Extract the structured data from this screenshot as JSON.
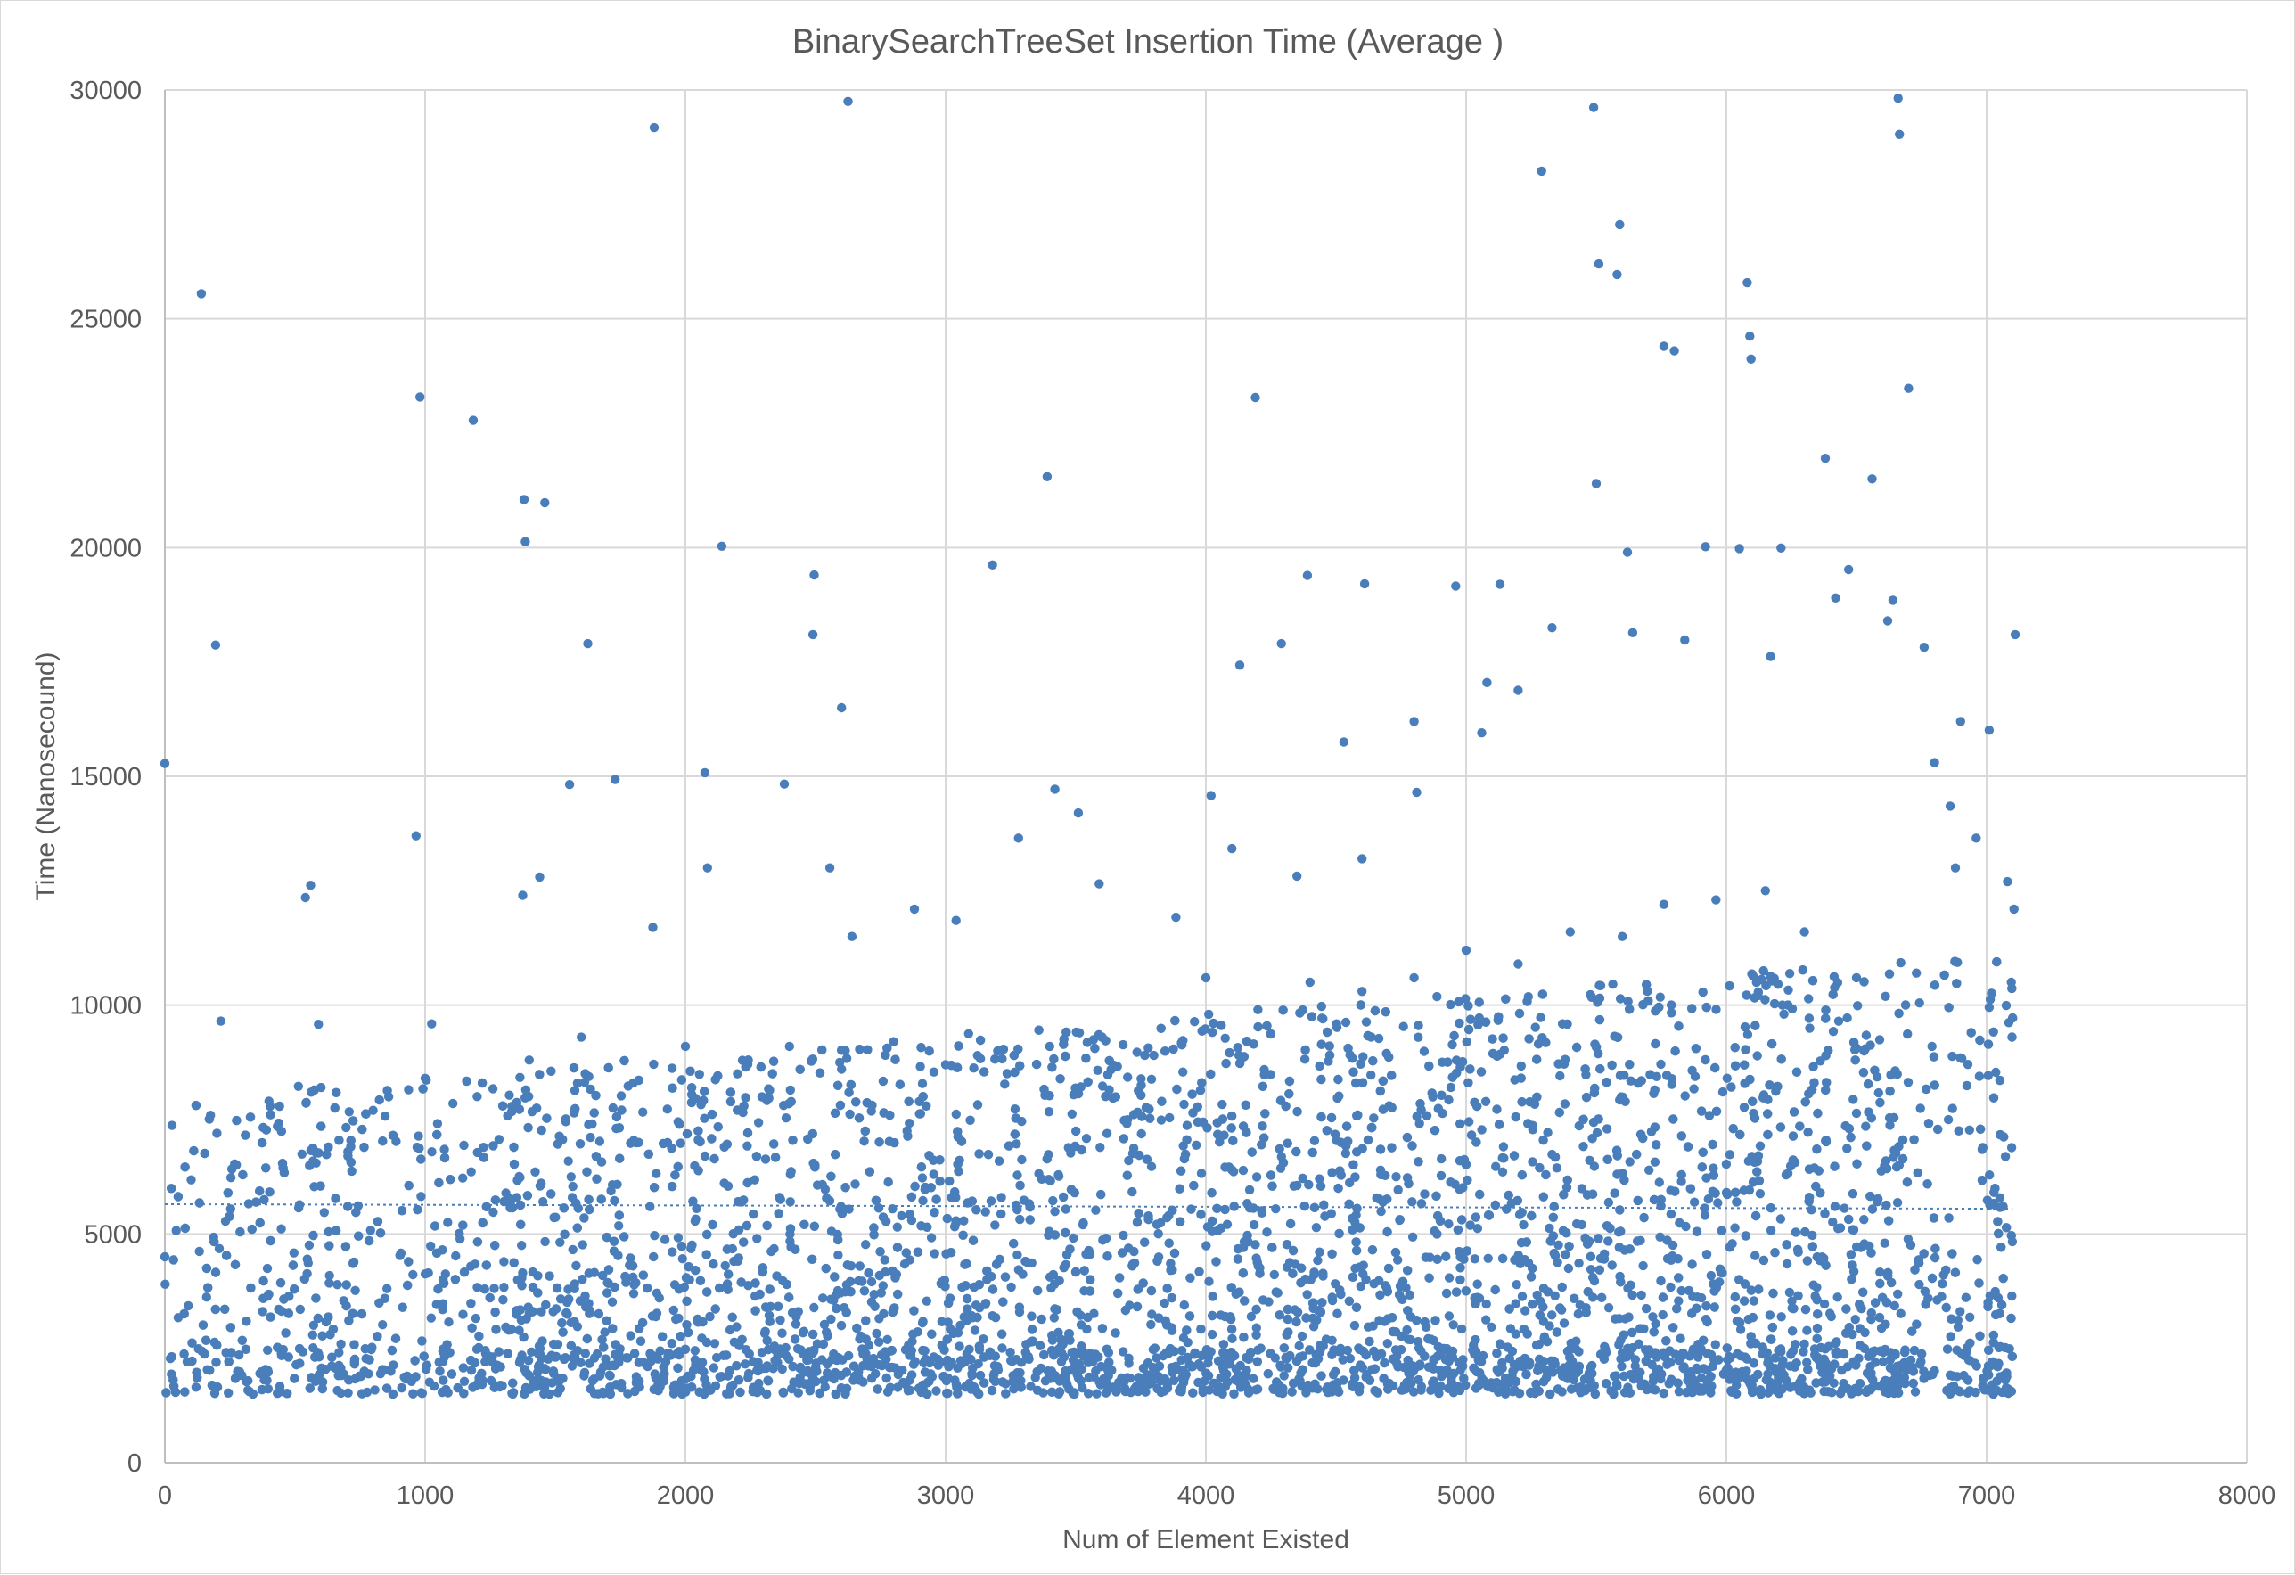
{
  "chart_data": {
    "type": "scatter",
    "title": "BinarySearchTreeSet Insertion Time (Average )",
    "xlabel": "Num of Element Existed",
    "ylabel": "Time (Nanosecound)",
    "xlim": [
      0,
      8000
    ],
    "ylim": [
      0,
      30000
    ],
    "x_ticks": [
      "0",
      "1000",
      "2000",
      "3000",
      "4000",
      "5000",
      "6000",
      "7000",
      "8000"
    ],
    "y_ticks": [
      "0",
      "5000",
      "10000",
      "15000",
      "20000",
      "25000",
      "30000"
    ],
    "grid": true,
    "legend": "none",
    "colors": {
      "marker": "#4a7ebb",
      "trendline": "#4a7ebb"
    },
    "trendline": {
      "type": "linear",
      "style": "dotted",
      "x": [
        0,
        7100
      ],
      "y": [
        5650,
        5550
      ]
    },
    "series": [
      {
        "points_note_free": true,
        "points": [
          [
            0,
            15280
          ],
          [
            140,
            25550
          ],
          [
            195,
            17870
          ],
          [
            215,
            9650
          ],
          [
            540,
            12350
          ],
          [
            560,
            12620
          ],
          [
            590,
            9580
          ],
          [
            965,
            13700
          ],
          [
            980,
            23290
          ],
          [
            1025,
            9590
          ],
          [
            1185,
            22780
          ],
          [
            1380,
            21050
          ],
          [
            1385,
            20130
          ],
          [
            1375,
            12400
          ],
          [
            1440,
            12800
          ],
          [
            1460,
            20980
          ],
          [
            1555,
            14820
          ],
          [
            1625,
            17900
          ],
          [
            1730,
            14930
          ],
          [
            1880,
            29180
          ],
          [
            1875,
            11700
          ],
          [
            2075,
            15080
          ],
          [
            2085,
            13000
          ],
          [
            2140,
            20030
          ],
          [
            2380,
            14830
          ],
          [
            2490,
            18100
          ],
          [
            2495,
            19400
          ],
          [
            2555,
            13000
          ],
          [
            2600,
            16500
          ],
          [
            2625,
            29750
          ],
          [
            2640,
            11500
          ],
          [
            2880,
            12100
          ],
          [
            3040,
            11850
          ],
          [
            3180,
            19620
          ],
          [
            3280,
            13650
          ],
          [
            3390,
            21550
          ],
          [
            3420,
            14720
          ],
          [
            3510,
            14200
          ],
          [
            3590,
            12650
          ],
          [
            3885,
            11920
          ],
          [
            4020,
            14580
          ],
          [
            4100,
            13420
          ],
          [
            4130,
            17430
          ],
          [
            4190,
            23280
          ],
          [
            4290,
            17900
          ],
          [
            4350,
            12820
          ],
          [
            4390,
            19390
          ],
          [
            4530,
            15750
          ],
          [
            4600,
            13200
          ],
          [
            4610,
            19210
          ],
          [
            4800,
            16200
          ],
          [
            4810,
            14650
          ],
          [
            4960,
            19160
          ],
          [
            5060,
            15950
          ],
          [
            5080,
            17050
          ],
          [
            5130,
            19200
          ],
          [
            5200,
            16880
          ],
          [
            5290,
            28230
          ],
          [
            5330,
            18250
          ],
          [
            5490,
            29620
          ],
          [
            5500,
            21400
          ],
          [
            5510,
            26200
          ],
          [
            5580,
            25970
          ],
          [
            5590,
            27060
          ],
          [
            5620,
            19900
          ],
          [
            5640,
            18140
          ],
          [
            5760,
            24400
          ],
          [
            5800,
            24300
          ],
          [
            5840,
            17980
          ],
          [
            5920,
            20020
          ],
          [
            6050,
            19980
          ],
          [
            6080,
            25790
          ],
          [
            6090,
            24620
          ],
          [
            6095,
            24120
          ],
          [
            6170,
            17620
          ],
          [
            6210,
            19990
          ],
          [
            6380,
            21950
          ],
          [
            6420,
            18900
          ],
          [
            6470,
            19520
          ],
          [
            6560,
            21500
          ],
          [
            6620,
            18400
          ],
          [
            6640,
            18850
          ],
          [
            6660,
            29820
          ],
          [
            6665,
            29030
          ],
          [
            6700,
            23480
          ],
          [
            6760,
            17820
          ],
          [
            6800,
            15300
          ],
          [
            6900,
            16200
          ],
          [
            7010,
            16010
          ],
          [
            7110,
            18100
          ],
          [
            7080,
            12700
          ],
          [
            7105,
            12100
          ],
          [
            7095,
            10500
          ],
          [
            7010,
            9950
          ],
          [
            6960,
            13650
          ],
          [
            6860,
            14350
          ],
          [
            6880,
            13000
          ],
          [
            6790,
            9100
          ],
          [
            6730,
            10700
          ],
          [
            6500,
            10600
          ],
          [
            6300,
            11600
          ],
          [
            6150,
            12500
          ],
          [
            5960,
            12300
          ],
          [
            5760,
            12200
          ],
          [
            5600,
            11500
          ],
          [
            5400,
            11600
          ],
          [
            5200,
            10900
          ],
          [
            5000,
            11200
          ],
          [
            4800,
            10600
          ],
          [
            4600,
            10300
          ],
          [
            4400,
            10500
          ],
          [
            4200,
            9900
          ],
          [
            4000,
            10600
          ],
          [
            3800,
            8900
          ],
          [
            3600,
            9300
          ],
          [
            3400,
            9100
          ],
          [
            3200,
            9000
          ],
          [
            3000,
            8700
          ],
          [
            2800,
            9200
          ],
          [
            2600,
            8600
          ],
          [
            2400,
            9100
          ],
          [
            2200,
            8500
          ],
          [
            2000,
            9100
          ],
          [
            1800,
            8300
          ],
          [
            1600,
            9300
          ],
          [
            1400,
            8800
          ],
          [
            1200,
            8000
          ],
          [
            1000,
            8400
          ],
          [
            800,
            7700
          ],
          [
            600,
            8200
          ],
          [
            400,
            7900
          ],
          [
            200,
            7200
          ],
          [
            0,
            4500
          ]
        ]
      }
    ]
  }
}
